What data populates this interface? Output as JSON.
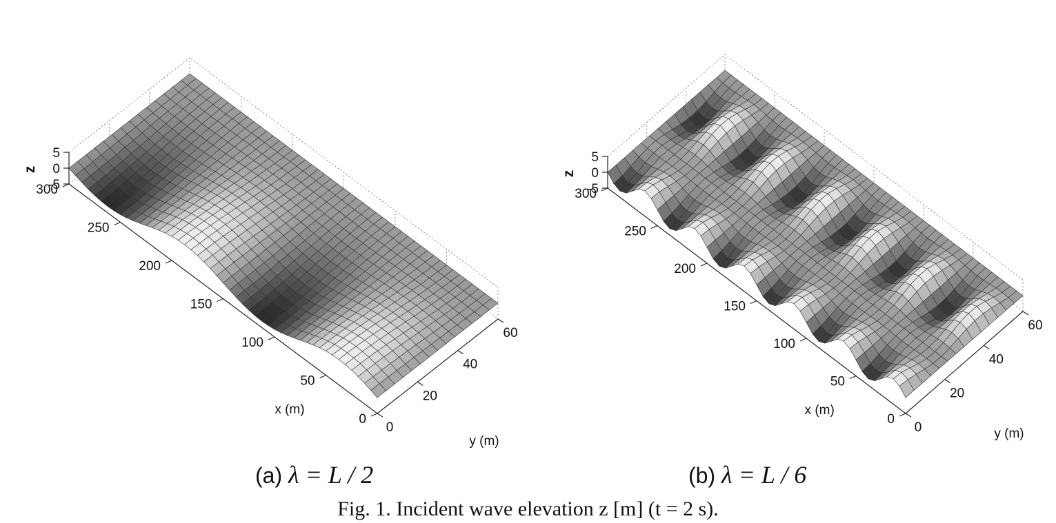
{
  "figure": {
    "caption": "Fig. 1.    Incident wave elevation z [m] (t = 2 s)."
  },
  "chart_data": [
    {
      "type": "surface",
      "subtitle_prefix": "(a) ",
      "subtitle_math": "λ = L / 2",
      "xlabel": "x (m)",
      "ylabel": "y (m)",
      "zlabel": "z",
      "xlim": [
        0,
        300
      ],
      "ylim": [
        0,
        60
      ],
      "zlim": [
        -5,
        5
      ],
      "xticks": [
        0,
        50,
        100,
        150,
        200,
        250,
        300
      ],
      "yticks": [
        0,
        20,
        40,
        60
      ],
      "zticks": [
        -5,
        0,
        5
      ],
      "wave": {
        "wavelength_x_m": 150,
        "amplitude_m": 3,
        "wavelength_y_m": 120,
        "lateral_modulation": 0.5
      },
      "colormap": "gray",
      "grid": true
    },
    {
      "type": "surface",
      "subtitle_prefix": "(b) ",
      "subtitle_math": "λ = L / 6",
      "xlabel": "x (m)",
      "ylabel": "y (m)",
      "zlabel": "z",
      "xlim": [
        0,
        300
      ],
      "ylim": [
        0,
        60
      ],
      "zlim": [
        -5,
        5
      ],
      "xticks": [
        0,
        50,
        100,
        150,
        200,
        250,
        300
      ],
      "yticks": [
        0,
        20,
        40,
        60
      ],
      "zticks": [
        -5,
        0,
        5
      ],
      "wave": {
        "wavelength_x_m": 50,
        "amplitude_m": 3,
        "wavelength_y_m": 40,
        "lateral_modulation": 0.5
      },
      "colormap": "gray",
      "grid": true
    }
  ]
}
